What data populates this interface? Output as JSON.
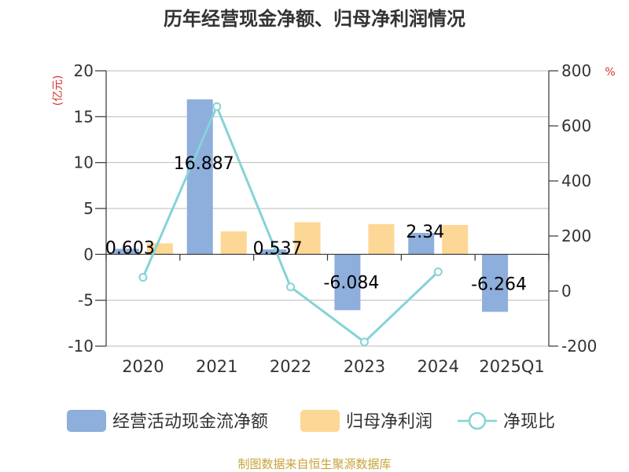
{
  "chart_data": {
    "type": "bar+line",
    "title": "历年经营现金净额、归母净利润情况",
    "categories": [
      "2020",
      "2021",
      "2022",
      "2023",
      "2024",
      "2025Q1"
    ],
    "series": [
      {
        "name": "经营活动现金流净额",
        "type": "bar",
        "axis": "left",
        "color": "#8eaedc",
        "values": [
          0.603,
          16.887,
          0.537,
          -6.084,
          2.34,
          -6.264
        ],
        "labels": [
          "0.603",
          "16.887",
          "0.537",
          "-6.084",
          "2.34",
          "-6.264"
        ]
      },
      {
        "name": "归母净利润",
        "type": "bar",
        "axis": "left",
        "color": "#fdd795",
        "values": [
          1.2,
          2.5,
          3.5,
          3.3,
          3.2,
          0.05
        ]
      },
      {
        "name": "净现比",
        "type": "line",
        "axis": "right",
        "color": "#86d3d6",
        "values": [
          50,
          670,
          15,
          -185,
          70,
          null
        ]
      }
    ],
    "left_axis": {
      "label": "(亿元)",
      "min": -10,
      "max": 20,
      "ticks": [
        -10,
        -5,
        0,
        5,
        10,
        15,
        20
      ]
    },
    "right_axis": {
      "label": "%",
      "min": -200,
      "max": 800,
      "ticks": [
        -200,
        0,
        200,
        400,
        600,
        800
      ]
    },
    "legend": {
      "position": "bottom",
      "entries": [
        "经营活动现金流净额",
        "归母净利润",
        "净现比"
      ]
    },
    "source": "制图数据来自恒生聚源数据库"
  }
}
